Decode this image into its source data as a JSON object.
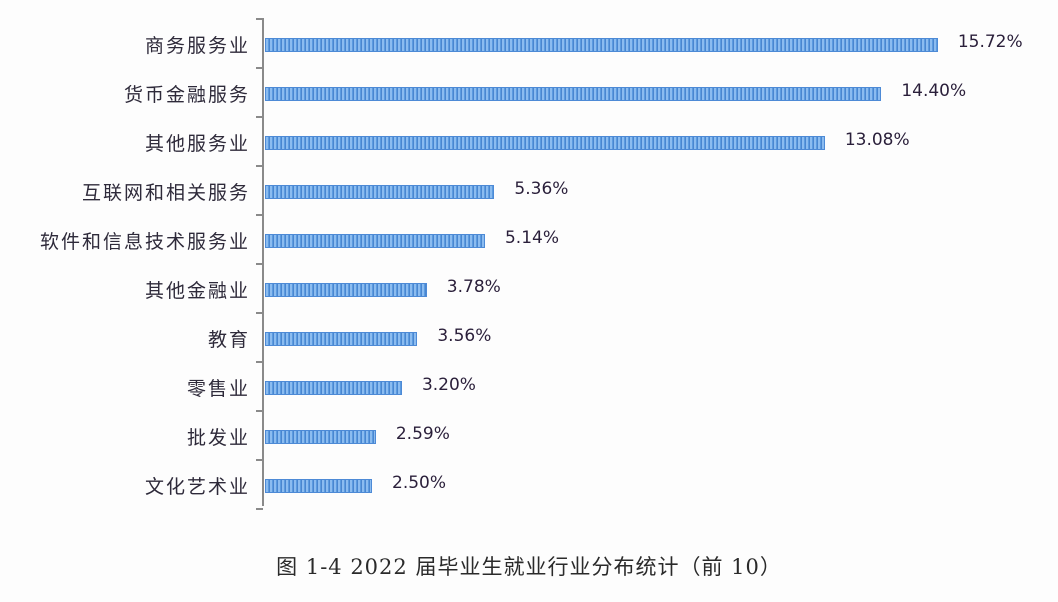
{
  "chart_data": {
    "type": "bar",
    "orientation": "horizontal",
    "title": "图 1-4   2022 届毕业生就业行业分布统计（前 10）",
    "xlabel": "",
    "ylabel": "",
    "categories": [
      "商务服务业",
      "货币金融服务",
      "其他服务业",
      "互联网和相关服务",
      "软件和信息技术服务业",
      "其他金融业",
      "教育",
      "零售业",
      "批发业",
      "文化艺术业"
    ],
    "values": [
      15.72,
      14.4,
      13.08,
      5.36,
      5.14,
      3.78,
      3.56,
      3.2,
      2.59,
      2.5
    ],
    "value_labels": [
      "15.72%",
      "14.40%",
      "13.08%",
      "5.36%",
      "5.14%",
      "3.78%",
      "3.56%",
      "3.20%",
      "2.59%",
      "2.50%"
    ],
    "unit": "%",
    "grid": false,
    "legend": null,
    "bar_color": "#5b9be0",
    "xlim": [
      0,
      16
    ]
  },
  "caption": "图 1-4   2022 届毕业生就业行业分布统计（前 10）"
}
